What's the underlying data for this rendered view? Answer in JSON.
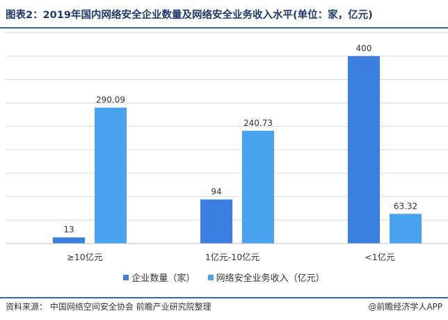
{
  "header": {
    "title": "图表2：2019年国内网络安全企业数量及网络安全业务收入水平(单位：家，亿元)"
  },
  "footer": {
    "source": "资料来源： 中国网络空间安全协会 前瞻产业研究院整理",
    "brand": "@前瞻经济学人APP"
  },
  "colors": {
    "series1": "#3b7fe0",
    "series2": "#4aa3ee",
    "rule": "#2c66b5",
    "grid": "#d9d9d9"
  },
  "chart_data": {
    "type": "bar",
    "title": "图表2：2019年国内网络安全企业数量及网络安全业务收入水平(单位：家，亿元)",
    "categories": [
      "≥10亿元",
      "1亿元-10亿元",
      "<1亿元"
    ],
    "series": [
      {
        "name": "企业数量（家）",
        "values": [
          13,
          94,
          400
        ],
        "color": "#3b7fe0"
      },
      {
        "name": "网络安全业务收入（亿元）",
        "values": [
          290.09,
          240.73,
          63.32
        ],
        "color": "#4aa3ee"
      }
    ],
    "value_labels": [
      [
        "13",
        "94",
        "400"
      ],
      [
        "290.09",
        "240.73",
        "63.32"
      ]
    ],
    "ylim": [
      0,
      450
    ],
    "grid": true,
    "legend_position": "bottom"
  }
}
